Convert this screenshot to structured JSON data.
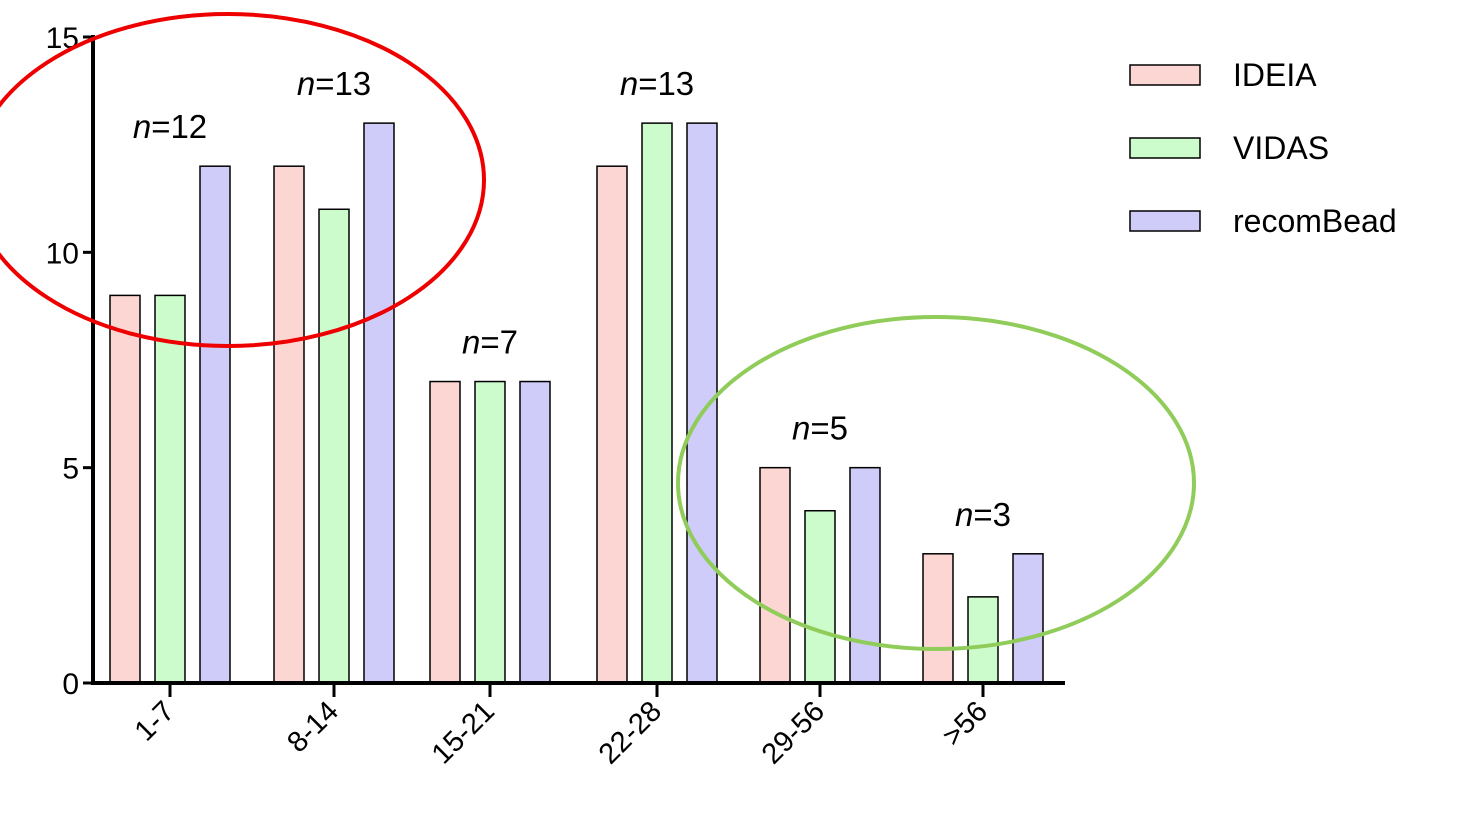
{
  "chart_data": {
    "type": "bar",
    "categories": [
      "1-7",
      "8-14",
      "15-21",
      "22-28",
      "29-56",
      ">56"
    ],
    "series": [
      {
        "name": "IDEIA",
        "color": "#fcd6d2",
        "values": [
          9,
          12,
          7,
          12,
          5,
          3
        ]
      },
      {
        "name": "VIDAS",
        "color": "#ccfccc",
        "values": [
          9,
          11,
          7,
          13,
          4,
          2
        ]
      },
      {
        "name": "recomBead",
        "color": "#cfccfa",
        "values": [
          12,
          13,
          7,
          13,
          5,
          3
        ]
      }
    ],
    "ylim": [
      0,
      15
    ],
    "yticks": [
      "0",
      "5",
      "10",
      "15"
    ],
    "annotations": [
      {
        "prefix": "n",
        "text": "=12"
      },
      {
        "prefix": "n",
        "text": "=13"
      },
      {
        "prefix": "n",
        "text": "=7"
      },
      {
        "prefix": "n",
        "text": "=13"
      },
      {
        "prefix": "n",
        "text": "=5"
      },
      {
        "prefix": "n",
        "text": "=3"
      }
    ],
    "highlights": [
      {
        "categories": [
          "1-7",
          "8-14"
        ],
        "color": "#ee0000"
      },
      {
        "categories": [
          "29-56",
          ">56"
        ],
        "color": "#90cc5a"
      }
    ],
    "legend_position": "top-right",
    "grid": false,
    "title": "",
    "xlabel": "",
    "ylabel": ""
  }
}
